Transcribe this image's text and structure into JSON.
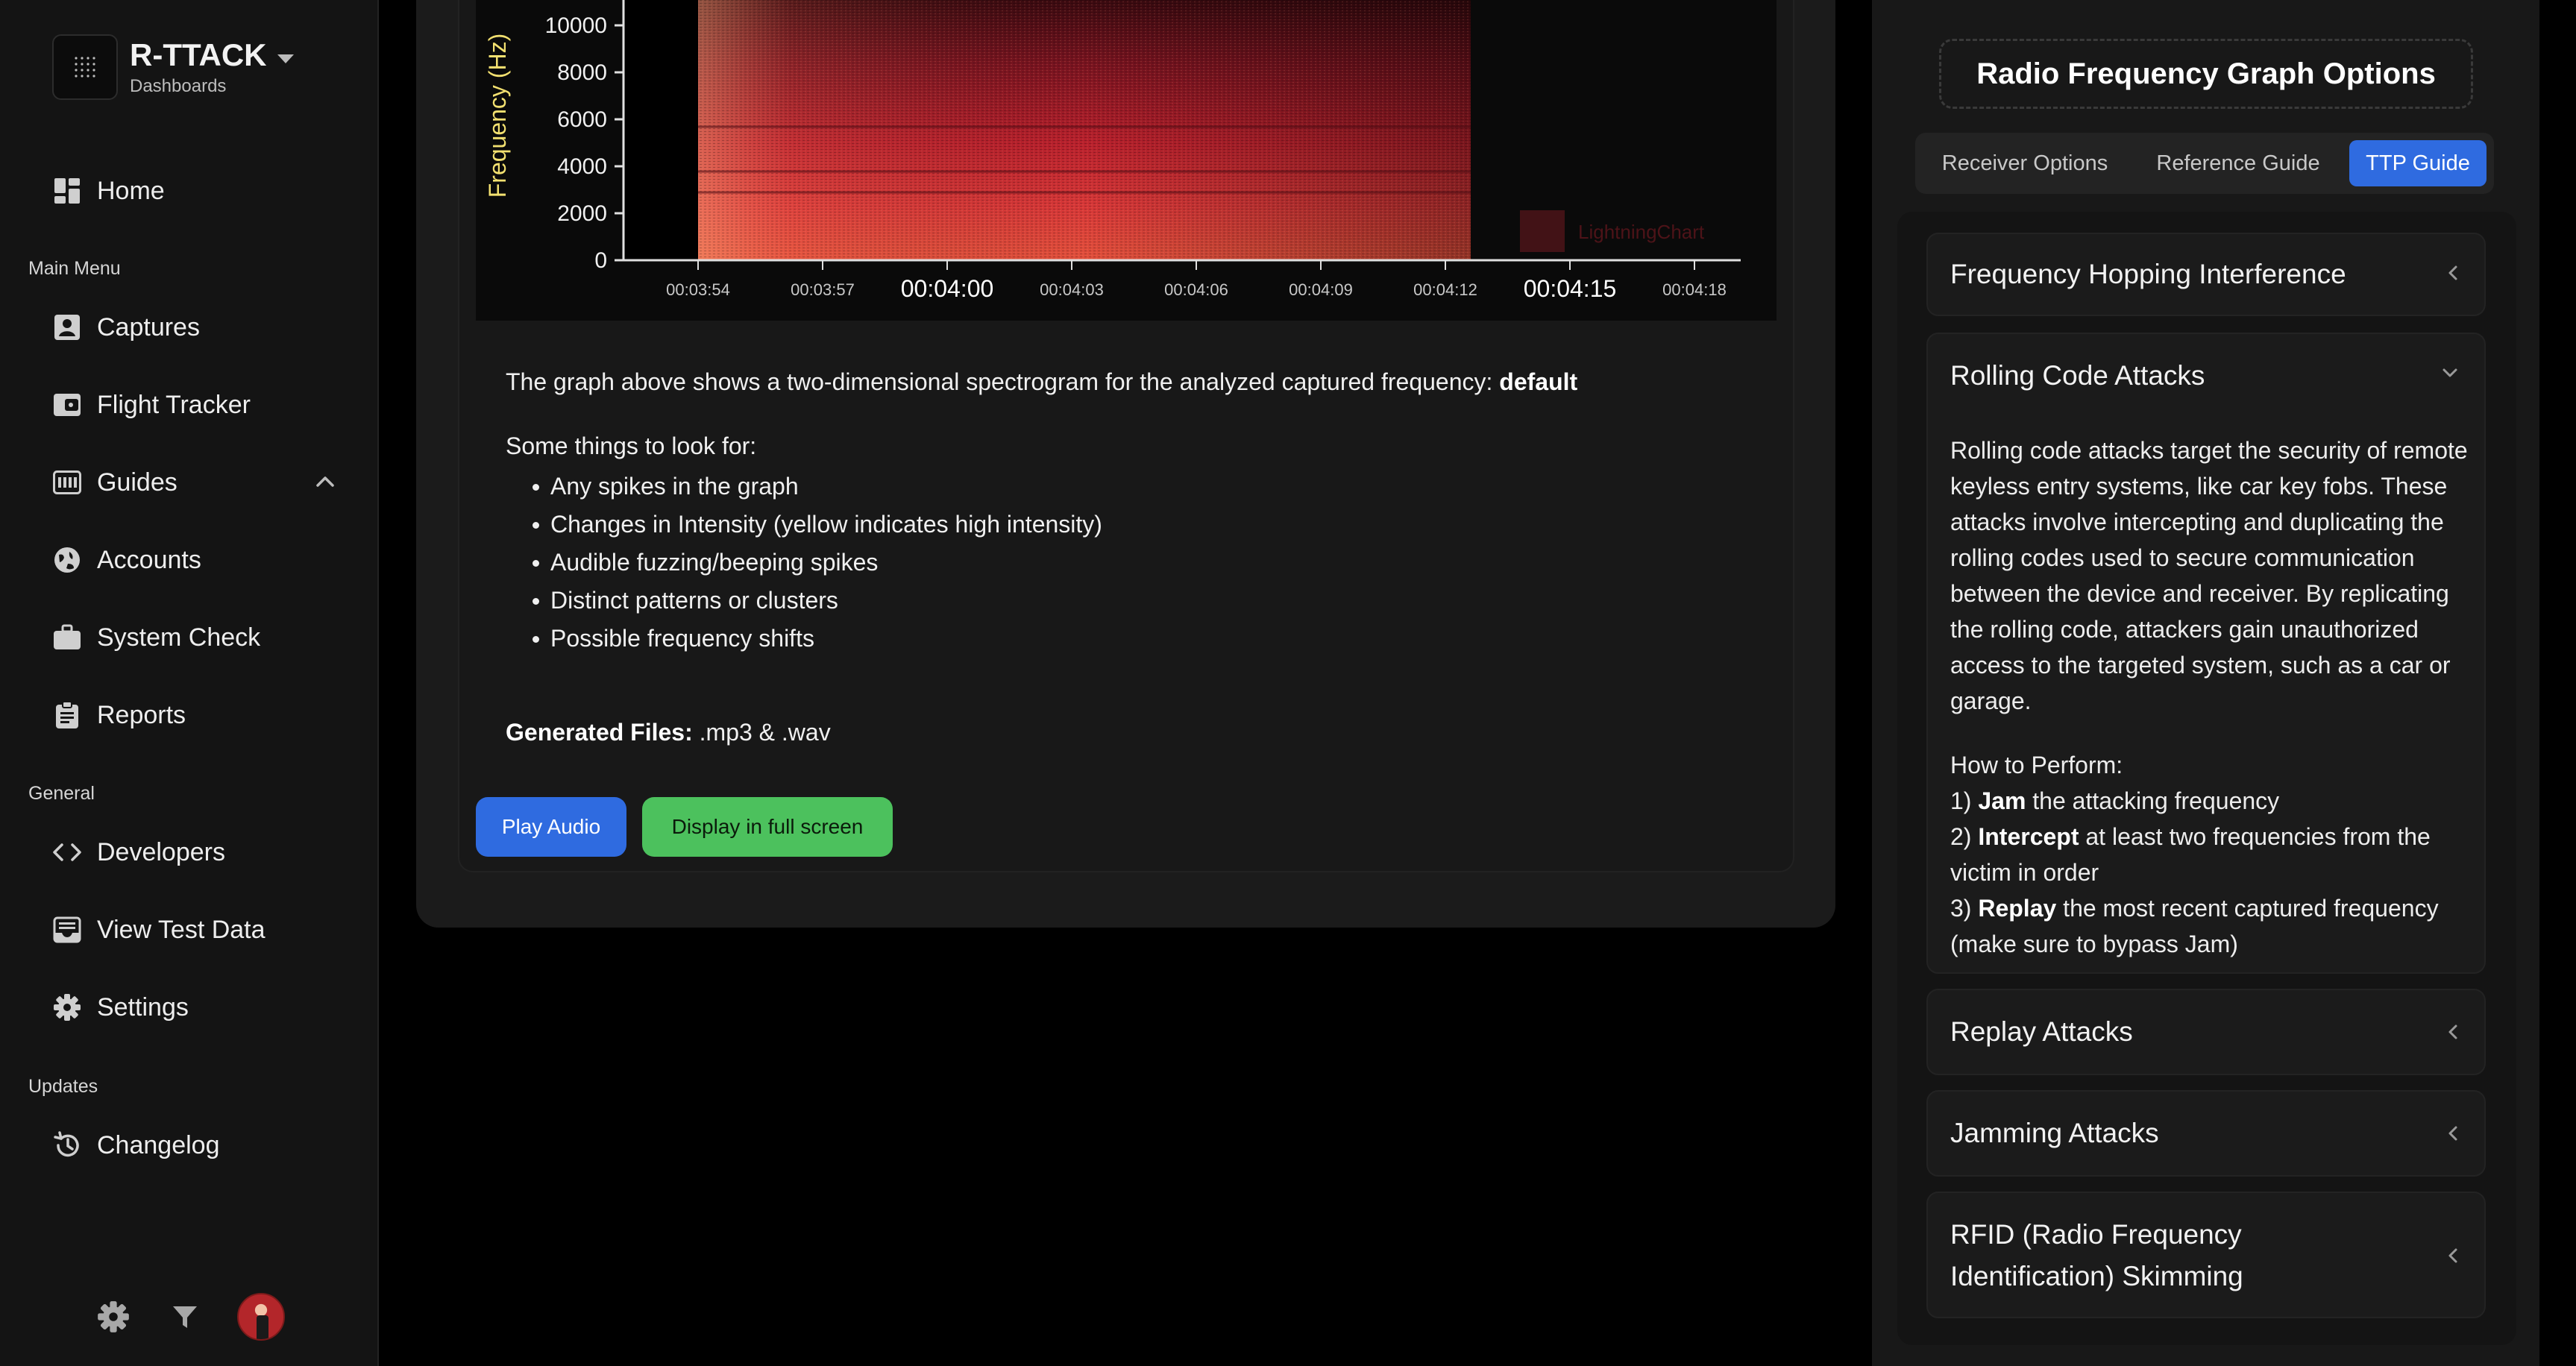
{
  "brand": {
    "title": "R-TTACK",
    "subtitle": "Dashboards"
  },
  "nav": {
    "home": "Home",
    "main_menu_label": "Main Menu",
    "captures": "Captures",
    "flight_tracker": "Flight Tracker",
    "guides": "Guides",
    "accounts": "Accounts",
    "system_check": "System Check",
    "reports": "Reports",
    "general_label": "General",
    "developers": "Developers",
    "view_test_data": "View Test Data",
    "settings": "Settings",
    "updates_label": "Updates",
    "changelog": "Changelog"
  },
  "spectrogram": {
    "y_label": "Frequency (Hz)",
    "y_ticks": [
      "10000",
      "8000",
      "6000",
      "4000",
      "2000",
      "0"
    ],
    "x_ticks": [
      {
        "label": "00:03:54",
        "major": false
      },
      {
        "label": "00:03:57",
        "major": false
      },
      {
        "label": "00:04:00",
        "major": true
      },
      {
        "label": "00:04:03",
        "major": false
      },
      {
        "label": "00:04:06",
        "major": false
      },
      {
        "label": "00:04:09",
        "major": false
      },
      {
        "label": "00:04:12",
        "major": false
      },
      {
        "label": "00:04:15",
        "major": true
      },
      {
        "label": "00:04:18",
        "major": false
      }
    ],
    "watermark": "LightningChart"
  },
  "content": {
    "desc_prefix": "The graph above shows a two-dimensional spectrogram for the analyzed captured frequency: ",
    "desc_value": "default",
    "look_header": "Some things to look for:",
    "look_items": [
      "Any spikes in the graph",
      "Changes in Intensity (yellow indicates high intensity)",
      "Audible fuzzing/beeping spikes",
      "Distinct patterns or clusters",
      "Possible frequency shifts"
    ],
    "files_label": "Generated Files:",
    "files_value": " .mp3 & .wav",
    "play_audio": "Play Audio",
    "full_screen": "Display in full screen"
  },
  "panel": {
    "title": "Radio Frequency Graph Options",
    "tabs": [
      "Receiver Options",
      "Reference Guide",
      "TTP Guide"
    ],
    "active_tab": "TTP Guide",
    "accordions": [
      {
        "title": "Frequency Hopping Interference"
      },
      {
        "title": "Rolling Code Attacks",
        "body": "Rolling code attacks target the security of remote keyless entry systems, like car key fobs. These attacks involve intercepting and duplicating the rolling codes used to secure communication between the device and receiver. By replicating the rolling code, attackers gain unauthorized access to the targeted system, such as a car or garage.",
        "how_label": "How to Perform:",
        "steps": [
          {
            "num": "1) ",
            "bold": "Jam",
            "rest": " the attacking frequency"
          },
          {
            "num": "2) ",
            "bold": "Intercept",
            "rest": " at least two frequencies from the victim in order"
          },
          {
            "num": "3) ",
            "bold": "Replay",
            "rest": " the most recent captured frequency (make sure to bypass Jam)"
          }
        ]
      },
      {
        "title": "Replay Attacks"
      },
      {
        "title": "Jamming Attacks"
      },
      {
        "title": "RFID (Radio Frequency Identification) Skimming"
      }
    ]
  },
  "colors": {
    "accent_blue": "#2f6be0",
    "accent_green": "#4cc15d"
  }
}
